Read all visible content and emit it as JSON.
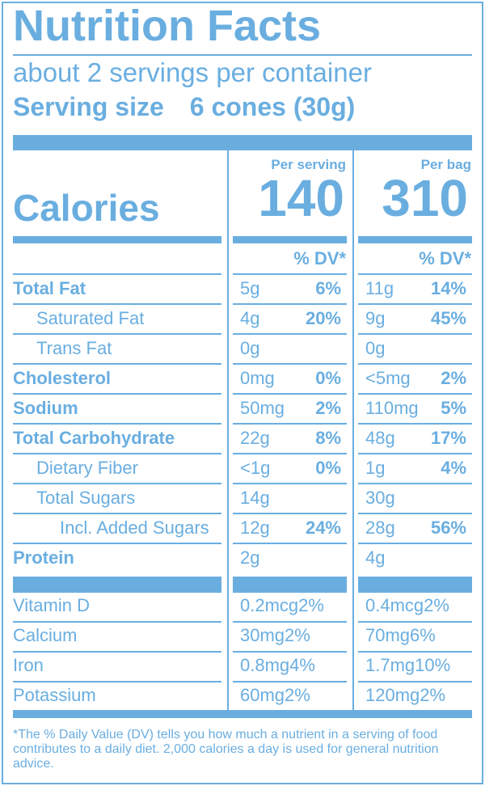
{
  "title": "Nutrition Facts",
  "servings_per_container": "about 2 servings per container",
  "serving_size": {
    "label": "Serving size",
    "value": "6 cones (30g)"
  },
  "columns": {
    "per_serving": "Per serving",
    "per_bag": "Per bag"
  },
  "calories": {
    "label": "Calories",
    "per_serving": "140",
    "per_bag": "310"
  },
  "dv_header": "% DV*",
  "nutrients": [
    {
      "name": "Total Fat",
      "serving_amount": "5g",
      "serving_dv": "6%",
      "bag_amount": "11g",
      "bag_dv": "14%"
    },
    {
      "name": "Saturated Fat",
      "serving_amount": "4g",
      "serving_dv": "20%",
      "bag_amount": "9g",
      "bag_dv": "45%"
    },
    {
      "name": "Trans Fat",
      "serving_amount": "0g",
      "serving_dv": "",
      "bag_amount": "0g",
      "bag_dv": ""
    },
    {
      "name": "Cholesterol",
      "serving_amount": "0mg",
      "serving_dv": "0%",
      "bag_amount": "<5mg",
      "bag_dv": "2%"
    },
    {
      "name": "Sodium",
      "serving_amount": "50mg",
      "serving_dv": "2%",
      "bag_amount": "110mg",
      "bag_dv": "5%"
    },
    {
      "name": "Total Carbohydrate",
      "serving_amount": "22g",
      "serving_dv": "8%",
      "bag_amount": "48g",
      "bag_dv": "17%"
    },
    {
      "name": "Dietary Fiber",
      "serving_amount": "<1g",
      "serving_dv": "0%",
      "bag_amount": "1g",
      "bag_dv": "4%"
    },
    {
      "name": "Total Sugars",
      "serving_amount": "14g",
      "serving_dv": "",
      "bag_amount": "30g",
      "bag_dv": ""
    },
    {
      "name": "Incl. Added Sugars",
      "serving_amount": "12g",
      "serving_dv": "24%",
      "bag_amount": "28g",
      "bag_dv": "56%"
    },
    {
      "name": "Protein",
      "serving_amount": "2g",
      "serving_dv": "",
      "bag_amount": "4g",
      "bag_dv": ""
    }
  ],
  "vitamins": [
    {
      "name": "Vitamin D",
      "serving": "0.2mcg2%",
      "bag": "0.4mcg2%"
    },
    {
      "name": "Calcium",
      "serving": "30mg2%",
      "bag": "70mg6%"
    },
    {
      "name": "Iron",
      "serving": "0.8mg4%",
      "bag": "1.7mg10%"
    },
    {
      "name": "Potassium",
      "serving": "60mg2%",
      "bag": "120mg2%"
    }
  ],
  "footnote": "*The % Daily Value (DV) tells you how much a nutrient in a serving of food contributes to a daily diet. 2,000 calories a day is used for general nutrition advice.",
  "colors": {
    "ink": "#6aaee0",
    "background": "#ffffff"
  }
}
